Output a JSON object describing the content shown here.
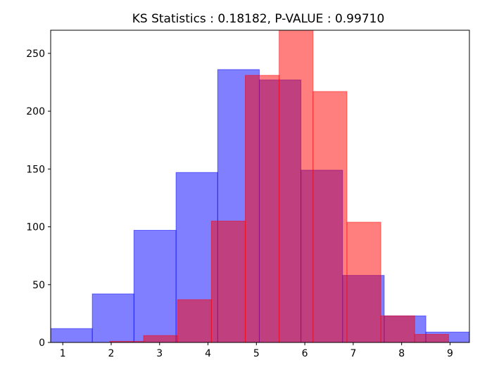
{
  "chart_data": {
    "type": "histogram",
    "title": "KS Statistics : 0.18182, P-VALUE : 0.99710",
    "xlabel": "",
    "ylabel": "",
    "xlim": [
      0.75,
      9.4
    ],
    "ylim": [
      0,
      270
    ],
    "xticks": [
      1,
      2,
      3,
      4,
      5,
      6,
      7,
      8,
      9
    ],
    "yticks": [
      0,
      50,
      100,
      150,
      200,
      250
    ],
    "series": [
      {
        "name": "blue",
        "color": "#0000ff",
        "opacity": 0.5,
        "bin_edges": [
          0.75,
          1.61,
          2.47,
          3.34,
          4.2,
          5.06,
          5.92,
          6.78,
          7.64,
          8.5,
          9.4
        ],
        "counts": [
          12,
          42,
          97,
          147,
          236,
          227,
          149,
          58,
          23,
          9
        ]
      },
      {
        "name": "red",
        "color": "#ff0000",
        "opacity": 0.5,
        "bin_edges": [
          1.97,
          2.67,
          3.37,
          4.07,
          4.77,
          5.47,
          6.17,
          6.87,
          7.57,
          8.27,
          8.97
        ],
        "counts": [
          1,
          6,
          37,
          105,
          231,
          270,
          217,
          104,
          23,
          7
        ]
      }
    ]
  }
}
